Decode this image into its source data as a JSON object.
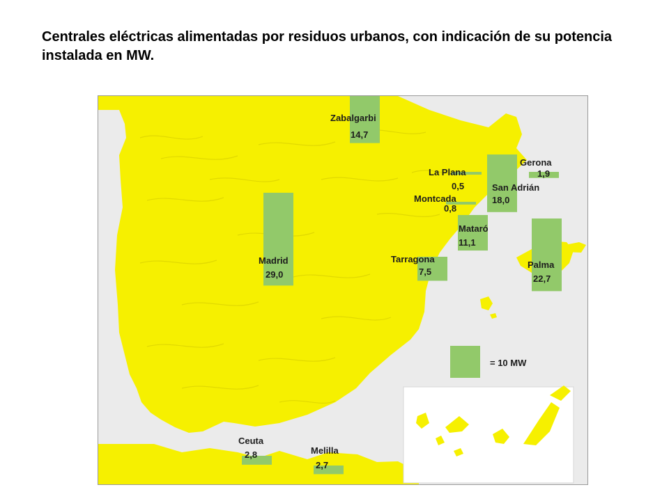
{
  "title": "Centrales eléctricas alimentadas por residuos urbanos, con indicación de su potencia instalada en MW.",
  "colors": {
    "land": "#f6f000",
    "water": "#ebebeb",
    "bar": "#92c96a",
    "text": "#1c1c1c"
  },
  "legend": {
    "label": "= 10 MW",
    "value_mw": 10
  },
  "plants": [
    {
      "name": "Zabalgarbi",
      "value": "14,7",
      "mw": 14.7
    },
    {
      "name": "Gerona",
      "value": "1,9",
      "mw": 1.9
    },
    {
      "name": "La Plana",
      "value": "0,5",
      "mw": 0.5
    },
    {
      "name": "San Adrián",
      "value": "18,0",
      "mw": 18.0
    },
    {
      "name": "Montcada",
      "value": "0,8",
      "mw": 0.8
    },
    {
      "name": "Mataró",
      "value": "11,1",
      "mw": 11.1
    },
    {
      "name": "Madrid",
      "value": "29,0",
      "mw": 29.0
    },
    {
      "name": "Tarragona",
      "value": "7,5",
      "mw": 7.5
    },
    {
      "name": "Palma",
      "value": "22,7",
      "mw": 22.7
    },
    {
      "name": "Ceuta",
      "value": "2,8",
      "mw": 2.8
    },
    {
      "name": "Melilla",
      "value": "2,7",
      "mw": 2.7
    }
  ]
}
